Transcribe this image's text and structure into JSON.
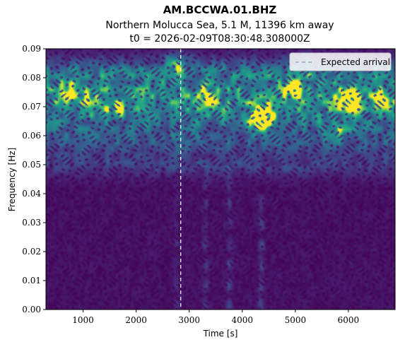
{
  "chart_data": {
    "type": "heatmap",
    "title": "AM.BCCWA.01.BHZ",
    "subtitle_line1": "Northern Molucca Sea, 5.1 M, 11396 km away",
    "subtitle_line2": "t0 = 2026-02-09T08:30:48.308000Z",
    "xlabel": "Time [s]",
    "ylabel": "Frequency [Hz]",
    "xlim": [
      300,
      6880
    ],
    "ylim": [
      0.0,
      0.09
    ],
    "x_ticks": [
      1000,
      2000,
      3000,
      4000,
      5000,
      6000
    ],
    "x_tick_labels": [
      "1000",
      "2000",
      "3000",
      "4000",
      "5000",
      "6000"
    ],
    "y_ticks": [
      0.0,
      0.01,
      0.02,
      0.03,
      0.04,
      0.05,
      0.06,
      0.07,
      0.08,
      0.09
    ],
    "y_tick_labels": [
      "0.00",
      "0.01",
      "0.02",
      "0.03",
      "0.04",
      "0.05",
      "0.06",
      "0.07",
      "0.08",
      "0.09"
    ],
    "colormap": "viridis",
    "expected_arrival_time": 2840,
    "legend": {
      "label": "Expected arrival",
      "placement": "top-right",
      "line_color": "#ffffff"
    },
    "energy_bands": [
      {
        "freq": 0.074,
        "width": 0.006,
        "strength": 0.55
      },
      {
        "freq": 0.082,
        "width": 0.005,
        "strength": 0.4
      },
      {
        "freq": 0.066,
        "width": 0.005,
        "strength": 0.42
      },
      {
        "freq": 0.058,
        "width": 0.005,
        "strength": 0.3
      },
      {
        "freq": 0.05,
        "width": 0.004,
        "strength": 0.18
      }
    ],
    "hotspots": [
      {
        "time": 700,
        "freq": 0.075,
        "strength": 0.55
      },
      {
        "time": 1150,
        "freq": 0.072,
        "strength": 0.45
      },
      {
        "time": 1600,
        "freq": 0.069,
        "strength": 0.35
      },
      {
        "time": 2750,
        "freq": 0.085,
        "strength": 0.45
      },
      {
        "time": 3300,
        "freq": 0.074,
        "strength": 0.5
      },
      {
        "time": 4400,
        "freq": 0.065,
        "strength": 0.9
      },
      {
        "time": 4300,
        "freq": 0.068,
        "strength": 0.6
      },
      {
        "time": 4950,
        "freq": 0.076,
        "strength": 0.55
      },
      {
        "time": 6000,
        "freq": 0.072,
        "strength": 0.8
      },
      {
        "time": 6700,
        "freq": 0.073,
        "strength": 0.5
      },
      {
        "time": 5300,
        "freq": 0.084,
        "strength": 0.35
      },
      {
        "time": 5800,
        "freq": 0.061,
        "strength": 0.35
      }
    ],
    "vertical_streaks": [
      {
        "time": 3300,
        "fmax": 0.05,
        "strength": 0.14
      },
      {
        "time": 3750,
        "fmax": 0.05,
        "strength": 0.16
      },
      {
        "time": 4350,
        "fmax": 0.04,
        "strength": 0.2
      },
      {
        "time": 2750,
        "fmax": 0.05,
        "strength": 0.1
      }
    ]
  }
}
